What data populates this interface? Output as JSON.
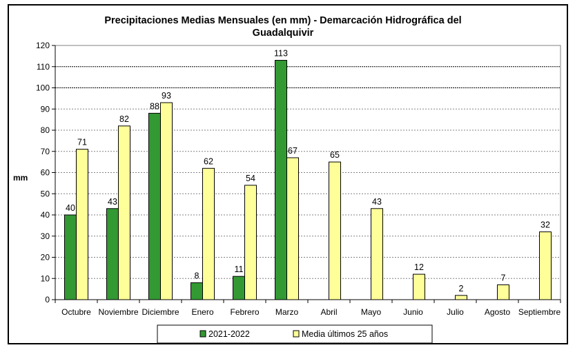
{
  "chart_data": {
    "type": "bar",
    "title": "Precipitaciones Medias Mensuales (en mm) - Demarcación Hidrográfica del Guadalquivir",
    "title_lines": [
      "Precipitaciones Medias Mensuales (en mm) - Demarcación Hidrográfica del",
      "Guadalquivir"
    ],
    "ylabel": "mm",
    "xlabel": "",
    "ylim": [
      0,
      120
    ],
    "yticks": [
      0,
      10,
      20,
      30,
      40,
      50,
      60,
      70,
      80,
      90,
      100,
      110,
      120
    ],
    "grid": true,
    "legend_position": "bottom",
    "categories": [
      "Octubre",
      "Noviembre",
      "Diciembre",
      "Enero",
      "Febrero",
      "Marzo",
      "Abril",
      "Mayo",
      "Junio",
      "Julio",
      "Agosto",
      "Septiembre"
    ],
    "series": [
      {
        "name": "2021-2022",
        "color": "#339933",
        "values": [
          40,
          43,
          88,
          8,
          11,
          113,
          null,
          null,
          null,
          null,
          null,
          null
        ]
      },
      {
        "name": "Media últimos 25 años",
        "color": "#ffff99",
        "values": [
          71,
          82,
          93,
          62,
          54,
          67,
          65,
          43,
          12,
          2,
          7,
          32
        ]
      }
    ]
  }
}
